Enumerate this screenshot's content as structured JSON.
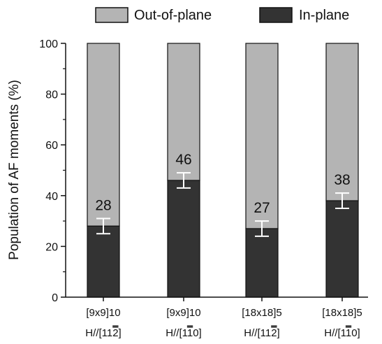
{
  "chart_data": {
    "type": "bar",
    "stacked": true,
    "ylabel": "Population of AF moments (%)",
    "ylim": [
      0,
      100
    ],
    "yticks": [
      0,
      20,
      40,
      60,
      80,
      100
    ],
    "categories": [
      {
        "line1": "[9x9]10",
        "line2": "H//[11",
        "digit": "2",
        "close": "]"
      },
      {
        "line1": "[9x9]10",
        "line2": "H//[1",
        "digit": "1",
        "close": "0]"
      },
      {
        "line1": "[18x18]5",
        "line2": "H//[11",
        "digit": "2",
        "close": "]"
      },
      {
        "line1": "[18x18]5",
        "line2": "H//[1",
        "digit": "1",
        "close": "0]"
      }
    ],
    "series": [
      {
        "name": "In-plane",
        "values": [
          28,
          46,
          27,
          38
        ],
        "color": "#333333"
      },
      {
        "name": "Out-of-plane",
        "values": [
          72,
          54,
          73,
          62
        ],
        "color": "#b4b4b4"
      }
    ],
    "error": [
      3,
      3,
      3,
      3
    ],
    "data_labels": [
      "28",
      "46",
      "27",
      "38"
    ],
    "legend": {
      "position": "top",
      "items": [
        {
          "label": "Out-of-plane",
          "color": "#b4b4b4"
        },
        {
          "label": "In-plane",
          "color": "#333333"
        }
      ]
    },
    "grid": false
  }
}
